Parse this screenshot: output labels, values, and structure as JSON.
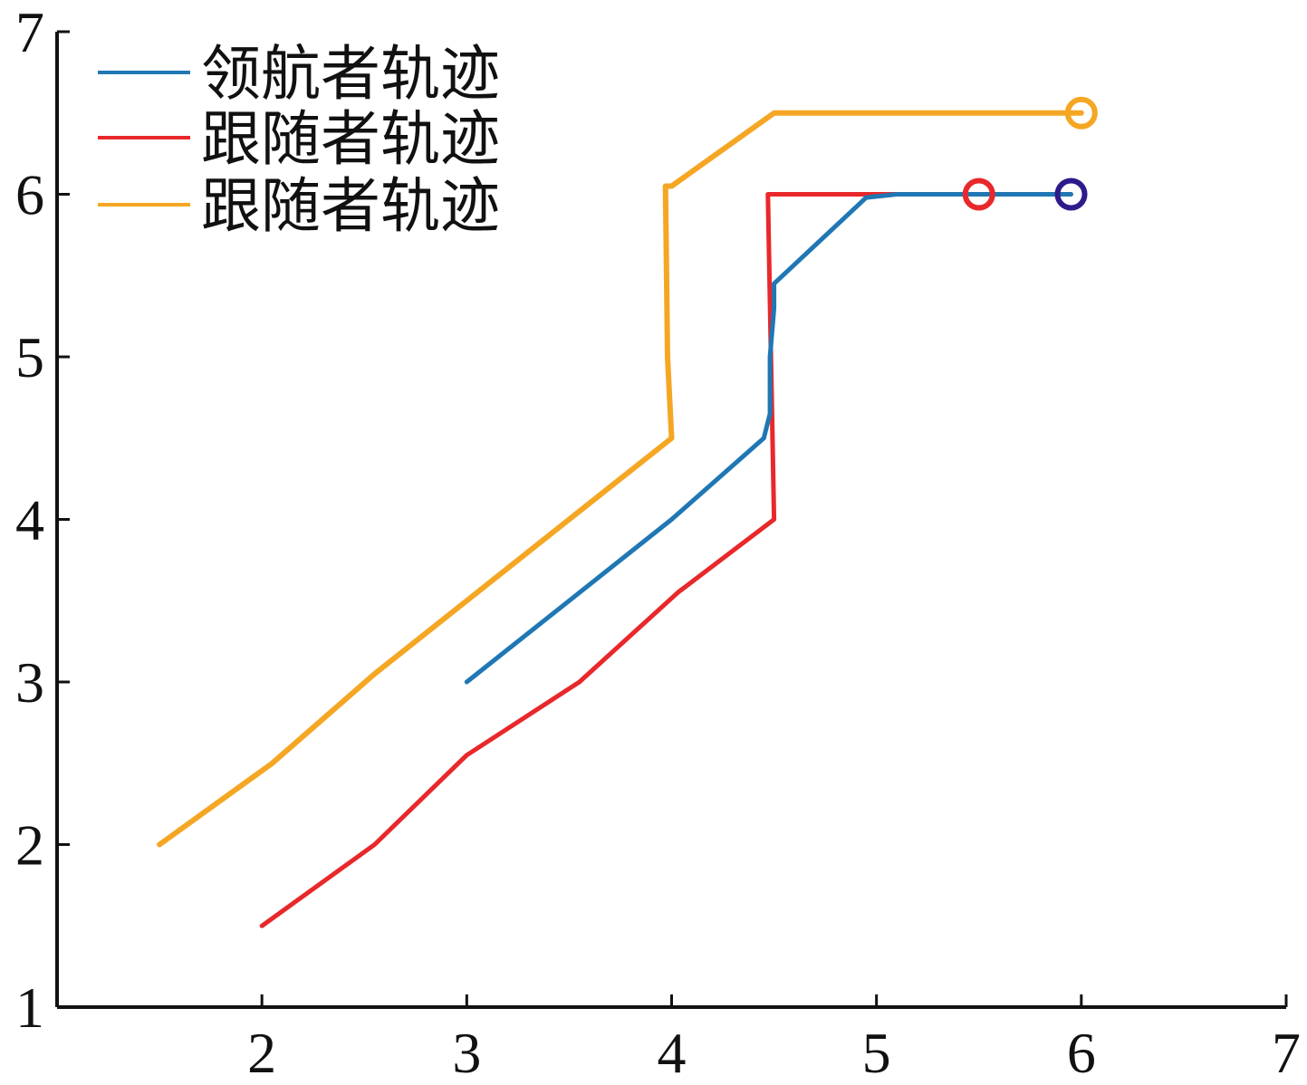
{
  "chart_data": {
    "type": "line",
    "title": "",
    "xlabel": "",
    "ylabel": "",
    "xlim": [
      1,
      7
    ],
    "ylim": [
      1,
      7
    ],
    "xticks": [
      2,
      3,
      4,
      5,
      6,
      7
    ],
    "yticks": [
      1,
      2,
      3,
      4,
      5,
      6,
      7
    ],
    "grid": false,
    "legend_position": "top-left",
    "series": [
      {
        "name": "领航者轨迹",
        "color": "#1f77b4",
        "x": [
          3.0,
          3.5,
          4.0,
          4.45,
          4.48,
          4.48,
          4.5,
          4.5,
          4.95,
          5.1,
          5.95
        ],
        "y": [
          3.0,
          3.5,
          4.0,
          4.5,
          4.65,
          5.0,
          5.3,
          5.45,
          5.98,
          6.0,
          6.0
        ],
        "end_marker": {
          "x": 5.95,
          "y": 6.0,
          "symbol": "circle",
          "color": "#2e1a8a"
        }
      },
      {
        "name": "跟随者轨迹",
        "color": "#e8282b",
        "x": [
          2.0,
          2.55,
          3.0,
          3.55,
          4.03,
          4.5,
          4.47,
          4.55,
          5.5
        ],
        "y": [
          1.5,
          2.0,
          2.55,
          3.0,
          3.55,
          4.0,
          6.0,
          6.0,
          6.0
        ],
        "end_marker": {
          "x": 5.5,
          "y": 6.0,
          "symbol": "circle",
          "color": "#e8282b"
        }
      },
      {
        "name": "跟随者轨迹",
        "color": "#f5a623",
        "x": [
          1.5,
          2.05,
          2.55,
          3.0,
          3.55,
          4.0,
          3.98,
          3.97,
          4.0,
          4.5,
          5.5,
          6.0
        ],
        "y": [
          2.0,
          2.5,
          3.05,
          3.5,
          4.05,
          4.5,
          5.0,
          6.05,
          6.05,
          6.5,
          6.5,
          6.5
        ],
        "end_marker": {
          "x": 6.0,
          "y": 6.5,
          "symbol": "circle",
          "color": "#f5a623"
        }
      }
    ]
  }
}
